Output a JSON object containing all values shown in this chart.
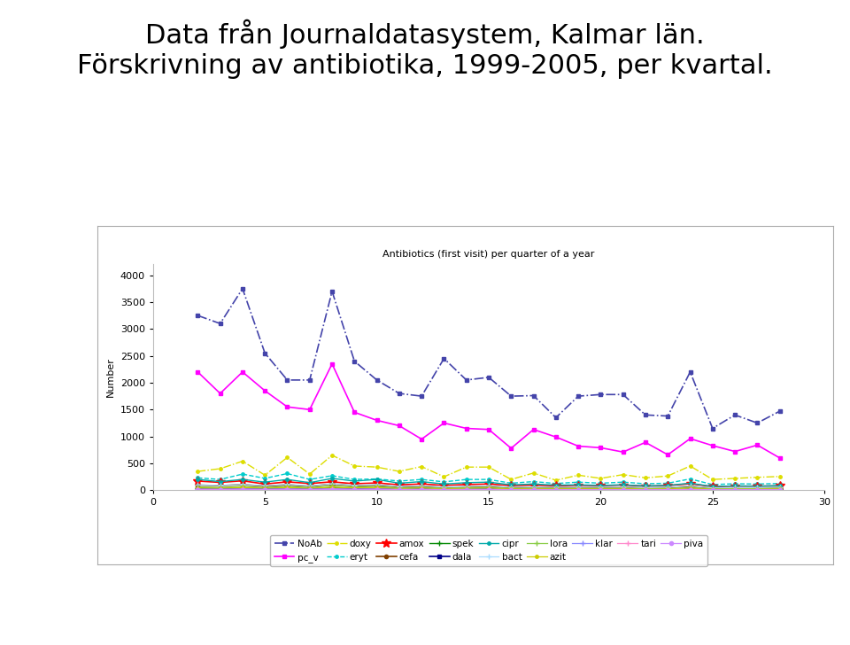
{
  "title_main_line1": "Data från Journaldatasystem, Kalmar län.",
  "title_main_line2": "Förskrivning av antibiotika, 1999-2005, per kvartal.",
  "chart_title": "Antibiotics (first visit) per quarter of a year",
  "ylabel": "Number",
  "xlim": [
    0,
    30
  ],
  "ylim": [
    0,
    4200
  ],
  "yticks": [
    0,
    500,
    1000,
    1500,
    2000,
    2500,
    3000,
    3500,
    4000
  ],
  "xticks": [
    0,
    5,
    10,
    15,
    20,
    25,
    30
  ],
  "x": [
    2,
    3,
    4,
    5,
    6,
    7,
    8,
    9,
    10,
    11,
    12,
    13,
    14,
    15,
    16,
    17,
    18,
    19,
    20,
    21,
    22,
    23,
    24,
    25,
    26,
    27,
    28
  ],
  "series": {
    "NoAb": [
      3250,
      3100,
      3750,
      2550,
      2050,
      2050,
      3700,
      2400,
      2050,
      1800,
      1750,
      2450,
      2050,
      2100,
      1750,
      1760,
      1350,
      1750,
      1780,
      1780,
      1400,
      1380,
      2200,
      1150,
      1400,
      1250,
      1470
    ],
    "pc_v": [
      2200,
      1800,
      2200,
      1850,
      1550,
      1500,
      2350,
      1450,
      1300,
      1200,
      950,
      1250,
      1150,
      1130,
      780,
      1130,
      990,
      820,
      790,
      710,
      890,
      660,
      960,
      830,
      720,
      840,
      600
    ],
    "doxy": [
      350,
      400,
      540,
      280,
      610,
      300,
      650,
      450,
      430,
      350,
      440,
      250,
      430,
      430,
      200,
      320,
      185,
      280,
      220,
      290,
      230,
      265,
      450,
      200,
      220,
      240,
      255
    ],
    "eryt": [
      230,
      200,
      300,
      220,
      310,
      200,
      270,
      200,
      210,
      170,
      200,
      155,
      200,
      200,
      130,
      160,
      125,
      150,
      130,
      150,
      120,
      130,
      210,
      105,
      120,
      115,
      125
    ],
    "amox": [
      170,
      145,
      175,
      115,
      155,
      125,
      155,
      120,
      135,
      100,
      115,
      90,
      105,
      115,
      85,
      95,
      80,
      90,
      85,
      95,
      75,
      85,
      120,
      65,
      75,
      75,
      80
    ],
    "cefa": [
      95,
      85,
      105,
      75,
      100,
      72,
      115,
      82,
      92,
      62,
      72,
      52,
      62,
      72,
      48,
      57,
      52,
      57,
      52,
      57,
      42,
      47,
      72,
      38,
      42,
      42,
      47
    ],
    "spek": [
      42,
      38,
      48,
      32,
      48,
      32,
      48,
      38,
      42,
      28,
      32,
      22,
      28,
      32,
      20,
      24,
      20,
      22,
      20,
      22,
      18,
      20,
      32,
      16,
      18,
      18,
      20
    ],
    "dala": [
      25,
      22,
      26,
      20,
      26,
      20,
      30,
      22,
      26,
      16,
      20,
      14,
      18,
      20,
      12,
      15,
      12,
      14,
      12,
      14,
      10,
      12,
      18,
      10,
      11,
      11,
      13
    ],
    "cipr": [
      200,
      160,
      200,
      150,
      200,
      140,
      220,
      170,
      200,
      130,
      160,
      115,
      140,
      150,
      100,
      115,
      95,
      100,
      90,
      100,
      80,
      90,
      130,
      70,
      80,
      75,
      85
    ],
    "bact": [
      100,
      90,
      110,
      85,
      110,
      80,
      120,
      90,
      105,
      70,
      82,
      60,
      70,
      82,
      55,
      62,
      57,
      62,
      57,
      62,
      47,
      55,
      80,
      42,
      47,
      47,
      55
    ],
    "lora": [
      60,
      50,
      70,
      50,
      70,
      50,
      80,
      60,
      70,
      42,
      52,
      35,
      45,
      52,
      32,
      38,
      32,
      35,
      32,
      35,
      28,
      32,
      48,
      25,
      28,
      28,
      35
    ],
    "azit": [
      40,
      35,
      50,
      35,
      48,
      35,
      55,
      42,
      48,
      28,
      38,
      25,
      32,
      38,
      22,
      28,
      22,
      25,
      22,
      25,
      18,
      22,
      35,
      16,
      18,
      18,
      25
    ],
    "klar": [
      20,
      18,
      25,
      18,
      25,
      18,
      28,
      20,
      25,
      14,
      18,
      12,
      16,
      18,
      10,
      14,
      10,
      12,
      10,
      12,
      8,
      10,
      16,
      8,
      10,
      10,
      12
    ],
    "tari": [
      15,
      12,
      18,
      12,
      18,
      12,
      20,
      15,
      18,
      10,
      13,
      8,
      10,
      13,
      6,
      10,
      6,
      8,
      6,
      8,
      6,
      8,
      12,
      5,
      6,
      6,
      8
    ],
    "piva": [
      8,
      6,
      10,
      6,
      10,
      6,
      12,
      8,
      10,
      5,
      7,
      4,
      5,
      7,
      3,
      5,
      3,
      4,
      3,
      4,
      3,
      4,
      6,
      3,
      3,
      3,
      4
    ]
  },
  "styles": {
    "NoAb": {
      "color": "#4444aa",
      "linestyle": "-.",
      "marker": "s",
      "markersize": 3,
      "linewidth": 1.2
    },
    "pc_v": {
      "color": "#ff00ff",
      "linestyle": "-",
      "marker": "s",
      "markersize": 3,
      "linewidth": 1.2
    },
    "doxy": {
      "color": "#dddd00",
      "linestyle": "-.",
      "marker": ".",
      "markersize": 5,
      "linewidth": 1.0
    },
    "eryt": {
      "color": "#00cccc",
      "linestyle": "--",
      "marker": ".",
      "markersize": 5,
      "linewidth": 1.0
    },
    "amox": {
      "color": "#ff0000",
      "linestyle": "-",
      "marker": "*",
      "markersize": 7,
      "linewidth": 1.2
    },
    "cefa": {
      "color": "#804000",
      "linestyle": "-",
      "marker": "o",
      "markersize": 3,
      "linewidth": 1.2
    },
    "spek": {
      "color": "#008800",
      "linestyle": "-",
      "marker": "+",
      "markersize": 5,
      "linewidth": 1.0
    },
    "dala": {
      "color": "#000088",
      "linestyle": "-",
      "marker": "s",
      "markersize": 3,
      "linewidth": 1.2
    },
    "cipr": {
      "color": "#00aaaa",
      "linestyle": "-",
      "marker": ".",
      "markersize": 5,
      "linewidth": 1.0
    },
    "bact": {
      "color": "#aaddff",
      "linestyle": "-",
      "marker": "+",
      "markersize": 4,
      "linewidth": 0.9
    },
    "lora": {
      "color": "#88cc44",
      "linestyle": "-",
      "marker": "+",
      "markersize": 4,
      "linewidth": 0.9
    },
    "azit": {
      "color": "#cccc00",
      "linestyle": "-",
      "marker": ".",
      "markersize": 5,
      "linewidth": 0.9
    },
    "klar": {
      "color": "#8888ff",
      "linestyle": "-",
      "marker": "+",
      "markersize": 4,
      "linewidth": 0.9
    },
    "tari": {
      "color": "#ff88cc",
      "linestyle": "-",
      "marker": "+",
      "markersize": 4,
      "linewidth": 0.9
    },
    "piva": {
      "color": "#cc88ff",
      "linestyle": "-",
      "marker": "o",
      "markersize": 3,
      "linewidth": 0.9
    }
  },
  "series_order": [
    "NoAb",
    "pc_v",
    "doxy",
    "eryt",
    "amox",
    "cefa",
    "spek",
    "dala",
    "cipr",
    "bact",
    "lora",
    "azit",
    "klar",
    "tari",
    "piva"
  ],
  "legend_row1": [
    "NoAb",
    "pc_v",
    "doxy",
    "eryt",
    "amox",
    "cefa",
    "spek",
    "dala",
    "cipr"
  ],
  "legend_row2": [
    "bact",
    "lora",
    "azit",
    "klar",
    "tari",
    "piva"
  ],
  "bg_color": "#f8f8f8",
  "fig_bg_color": "#ffffff",
  "chart_box_color": "#ffffff",
  "title_fontsize": 22,
  "chart_title_fontsize": 8,
  "axis_fontsize": 8,
  "legend_fontsize": 7.5
}
